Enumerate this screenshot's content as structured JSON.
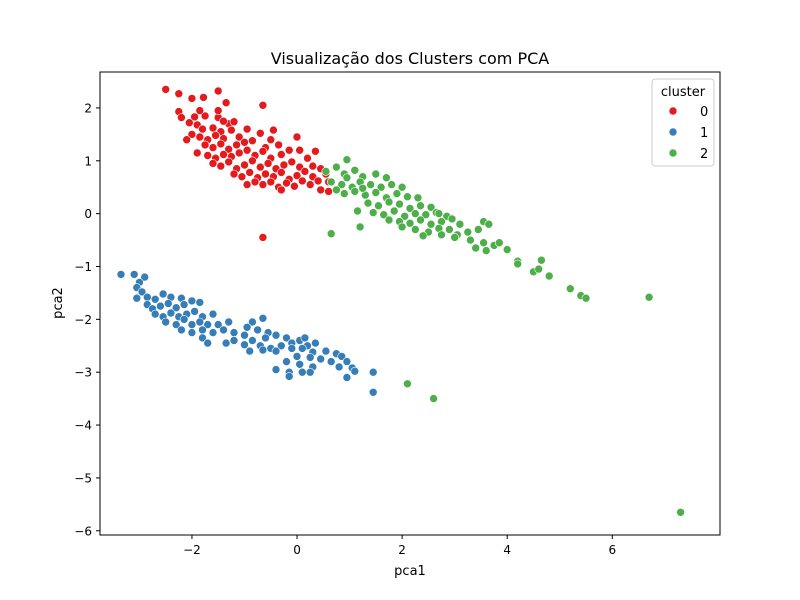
{
  "chart_data": {
    "type": "scatter",
    "title": "Visualização dos Clusters com PCA",
    "xlabel": "pca1",
    "ylabel": "pca2",
    "xlim": [
      -3.75,
      8.05
    ],
    "ylim": [
      -6.08,
      2.68
    ],
    "xticks": [
      -2,
      0,
      2,
      4,
      6
    ],
    "yticks": [
      -6,
      -5,
      -4,
      -3,
      -2,
      -1,
      0,
      1,
      2
    ],
    "grid": false,
    "legend": {
      "title": "cluster",
      "placement": "top-right"
    },
    "series": [
      {
        "name": "0",
        "color": "#e41a1c",
        "points": [
          [
            -2.5,
            2.35
          ],
          [
            -2.25,
            2.27
          ],
          [
            -2.0,
            2.18
          ],
          [
            -1.78,
            2.2
          ],
          [
            -1.5,
            2.32
          ],
          [
            -1.35,
            2.1
          ],
          [
            -0.65,
            2.05
          ],
          [
            -2.25,
            1.93
          ],
          [
            -2.2,
            1.82
          ],
          [
            -1.95,
            1.83
          ],
          [
            -1.75,
            1.85
          ],
          [
            -1.5,
            1.82
          ],
          [
            -1.3,
            1.7
          ],
          [
            -1.2,
            1.74
          ],
          [
            -2.05,
            1.72
          ],
          [
            -1.9,
            1.68
          ],
          [
            -1.8,
            1.6
          ],
          [
            -1.6,
            1.62
          ],
          [
            -1.45,
            1.55
          ],
          [
            -1.25,
            1.58
          ],
          [
            -0.95,
            1.6
          ],
          [
            -0.45,
            1.58
          ],
          [
            -2.0,
            1.5
          ],
          [
            -1.85,
            1.45
          ],
          [
            -1.7,
            1.4
          ],
          [
            -1.55,
            1.48
          ],
          [
            -1.4,
            1.42
          ],
          [
            -1.1,
            1.45
          ],
          [
            -0.7,
            1.52
          ],
          [
            0.0,
            1.45
          ],
          [
            -1.75,
            1.3
          ],
          [
            -1.6,
            1.25
          ],
          [
            -1.45,
            1.32
          ],
          [
            -1.3,
            1.22
          ],
          [
            -1.15,
            1.3
          ],
          [
            -1.0,
            1.35
          ],
          [
            -0.85,
            1.38
          ],
          [
            -0.6,
            1.25
          ],
          [
            -0.35,
            1.3
          ],
          [
            -1.9,
            1.15
          ],
          [
            -1.7,
            1.1
          ],
          [
            -1.55,
            1.05
          ],
          [
            -1.4,
            1.12
          ],
          [
            -1.25,
            1.08
          ],
          [
            -1.1,
            1.15
          ],
          [
            -0.95,
            1.2
          ],
          [
            -0.8,
            1.1
          ],
          [
            -0.65,
            1.18
          ],
          [
            -0.5,
            1.05
          ],
          [
            -0.3,
            1.12
          ],
          [
            -0.15,
            1.2
          ],
          [
            0.05,
            1.2
          ],
          [
            -1.6,
            0.95
          ],
          [
            -1.45,
            0.9
          ],
          [
            -1.3,
            0.98
          ],
          [
            -1.15,
            0.85
          ],
          [
            -1.0,
            0.92
          ],
          [
            -0.85,
            1.0
          ],
          [
            -0.7,
            0.88
          ],
          [
            -0.55,
            0.95
          ],
          [
            -0.4,
            0.85
          ],
          [
            -0.25,
            0.92
          ],
          [
            -0.1,
            0.98
          ],
          [
            0.05,
            0.88
          ],
          [
            0.2,
            1.05
          ],
          [
            0.35,
            1.18
          ],
          [
            -1.2,
            0.75
          ],
          [
            -1.05,
            0.7
          ],
          [
            -0.9,
            0.78
          ],
          [
            -0.75,
            0.68
          ],
          [
            -0.6,
            0.75
          ],
          [
            -0.45,
            0.7
          ],
          [
            -0.3,
            0.78
          ],
          [
            -0.15,
            0.65
          ],
          [
            0.0,
            0.72
          ],
          [
            0.15,
            0.8
          ],
          [
            0.3,
            0.7
          ],
          [
            0.45,
            0.85
          ],
          [
            0.55,
            0.75
          ],
          [
            -0.95,
            0.55
          ],
          [
            -0.8,
            0.6
          ],
          [
            -0.65,
            0.55
          ],
          [
            -0.5,
            0.6
          ],
          [
            -0.35,
            0.5
          ],
          [
            -0.2,
            0.58
          ],
          [
            -0.05,
            0.52
          ],
          [
            0.1,
            0.62
          ],
          [
            0.25,
            0.55
          ],
          [
            0.4,
            0.62
          ],
          [
            0.6,
            0.6
          ],
          [
            -0.3,
            0.45
          ],
          [
            0.45,
            0.45
          ],
          [
            0.6,
            0.42
          ],
          [
            -0.65,
            -0.45
          ],
          [
            -1.5,
            1.95
          ],
          [
            -1.85,
            1.95
          ],
          [
            -1.4,
            1.75
          ],
          [
            0.3,
            0.9
          ],
          [
            -0.5,
            1.4
          ],
          [
            -2.1,
            1.4
          ]
        ]
      },
      {
        "name": "1",
        "color": "#377eb8",
        "points": [
          [
            -3.35,
            -1.15
          ],
          [
            -3.1,
            -1.15
          ],
          [
            -2.9,
            -1.2
          ],
          [
            -3.0,
            -1.3
          ],
          [
            -3.05,
            -1.4
          ],
          [
            -2.95,
            -1.48
          ],
          [
            -3.05,
            -1.6
          ],
          [
            -2.85,
            -1.58
          ],
          [
            -2.7,
            -1.62
          ],
          [
            -2.55,
            -1.52
          ],
          [
            -2.4,
            -1.58
          ],
          [
            -2.2,
            -1.6
          ],
          [
            -2.85,
            -1.72
          ],
          [
            -2.75,
            -1.8
          ],
          [
            -2.6,
            -1.75
          ],
          [
            -2.45,
            -1.7
          ],
          [
            -2.3,
            -1.78
          ],
          [
            -2.15,
            -1.72
          ],
          [
            -2.0,
            -1.65
          ],
          [
            -1.85,
            -1.68
          ],
          [
            -2.7,
            -1.9
          ],
          [
            -2.55,
            -1.95
          ],
          [
            -2.4,
            -1.88
          ],
          [
            -2.25,
            -1.95
          ],
          [
            -2.1,
            -1.9
          ],
          [
            -1.95,
            -1.85
          ],
          [
            -1.8,
            -1.95
          ],
          [
            -1.6,
            -1.9
          ],
          [
            -2.5,
            -2.05
          ],
          [
            -2.3,
            -2.1
          ],
          [
            -2.15,
            -2.0
          ],
          [
            -2.0,
            -2.1
          ],
          [
            -1.85,
            -2.05
          ],
          [
            -1.7,
            -2.1
          ],
          [
            -1.5,
            -2.1
          ],
          [
            -1.3,
            -2.05
          ],
          [
            -2.2,
            -2.2
          ],
          [
            -2.0,
            -2.25
          ],
          [
            -1.8,
            -2.2
          ],
          [
            -1.6,
            -2.25
          ],
          [
            -1.4,
            -2.2
          ],
          [
            -1.2,
            -2.25
          ],
          [
            -0.85,
            -2.05
          ],
          [
            -0.65,
            -1.98
          ],
          [
            -0.95,
            -2.15
          ],
          [
            -0.75,
            -2.2
          ],
          [
            -0.55,
            -2.25
          ],
          [
            -1.0,
            -2.3
          ],
          [
            -1.8,
            -2.35
          ],
          [
            -1.7,
            -2.45
          ],
          [
            -1.35,
            -2.45
          ],
          [
            -1.2,
            -2.4
          ],
          [
            -1.0,
            -2.48
          ],
          [
            -0.85,
            -2.4
          ],
          [
            -0.6,
            -2.35
          ],
          [
            -0.4,
            -2.3
          ],
          [
            -0.2,
            -2.35
          ],
          [
            -0.7,
            -2.5
          ],
          [
            -0.5,
            -2.55
          ],
          [
            -0.3,
            -2.5
          ],
          [
            -0.1,
            -2.45
          ],
          [
            0.05,
            -2.4
          ],
          [
            0.2,
            -2.5
          ],
          [
            0.35,
            -2.45
          ],
          [
            -0.9,
            -2.6
          ],
          [
            -0.65,
            -2.58
          ],
          [
            -0.4,
            -2.6
          ],
          [
            0.1,
            -2.55
          ],
          [
            0.3,
            -2.62
          ],
          [
            0.55,
            -2.6
          ],
          [
            0.75,
            -2.65
          ],
          [
            0.0,
            -2.7
          ],
          [
            0.25,
            -2.72
          ],
          [
            0.45,
            -2.75
          ],
          [
            0.65,
            -2.8
          ],
          [
            0.85,
            -2.7
          ],
          [
            -0.2,
            -2.8
          ],
          [
            0.05,
            -2.85
          ],
          [
            0.3,
            -2.9
          ],
          [
            0.95,
            -2.8
          ],
          [
            -0.4,
            -2.95
          ],
          [
            -0.15,
            -3.0
          ],
          [
            0.1,
            -3.0
          ],
          [
            0.25,
            -3.0
          ],
          [
            0.8,
            -2.9
          ],
          [
            1.05,
            -2.92
          ],
          [
            1.1,
            -2.98
          ],
          [
            0.95,
            -3.1
          ],
          [
            -0.15,
            -3.08
          ],
          [
            1.45,
            -3.0
          ],
          [
            1.45,
            -3.38
          ],
          [
            -0.1,
            -2.55
          ],
          [
            0.15,
            -2.35
          ]
        ]
      },
      {
        "name": "2",
        "color": "#4daf4a",
        "points": [
          [
            0.95,
            1.02
          ],
          [
            0.75,
            0.88
          ],
          [
            0.55,
            0.8
          ],
          [
            0.9,
            0.75
          ],
          [
            1.1,
            0.82
          ],
          [
            1.25,
            0.7
          ],
          [
            1.5,
            0.75
          ],
          [
            1.7,
            0.68
          ],
          [
            0.65,
            0.6
          ],
          [
            0.85,
            0.55
          ],
          [
            1.05,
            0.5
          ],
          [
            1.2,
            0.6
          ],
          [
            1.4,
            0.55
          ],
          [
            1.6,
            0.5
          ],
          [
            1.8,
            0.55
          ],
          [
            2.0,
            0.5
          ],
          [
            0.75,
            0.45
          ],
          [
            0.9,
            0.38
          ],
          [
            1.1,
            0.42
          ],
          [
            1.3,
            0.35
          ],
          [
            1.5,
            0.4
          ],
          [
            1.7,
            0.3
          ],
          [
            1.9,
            0.38
          ],
          [
            2.1,
            0.32
          ],
          [
            2.3,
            0.3
          ],
          [
            1.35,
            0.2
          ],
          [
            1.55,
            0.15
          ],
          [
            1.75,
            0.22
          ],
          [
            1.95,
            0.18
          ],
          [
            2.15,
            0.1
          ],
          [
            2.35,
            0.15
          ],
          [
            2.55,
            0.12
          ],
          [
            1.15,
            0.05
          ],
          [
            1.45,
            0.02
          ],
          [
            1.65,
            -0.02
          ],
          [
            1.85,
            0.05
          ],
          [
            2.05,
            -0.05
          ],
          [
            2.25,
            0.0
          ],
          [
            2.45,
            -0.02
          ],
          [
            2.65,
            0.02
          ],
          [
            2.85,
            -0.05
          ],
          [
            1.75,
            -0.12
          ],
          [
            1.95,
            -0.15
          ],
          [
            2.15,
            -0.18
          ],
          [
            2.35,
            -0.12
          ],
          [
            2.55,
            -0.2
          ],
          [
            2.75,
            -0.15
          ],
          [
            2.95,
            -0.1
          ],
          [
            3.1,
            -0.2
          ],
          [
            2.0,
            -0.25
          ],
          [
            2.25,
            -0.3
          ],
          [
            2.5,
            -0.35
          ],
          [
            2.7,
            -0.28
          ],
          [
            2.9,
            -0.3
          ],
          [
            3.05,
            -0.4
          ],
          [
            3.25,
            -0.35
          ],
          [
            3.45,
            -0.3
          ],
          [
            3.55,
            -0.15
          ],
          [
            3.65,
            -0.2
          ],
          [
            2.4,
            -0.42
          ],
          [
            2.75,
            -0.4
          ],
          [
            3.0,
            -0.45
          ],
          [
            3.3,
            -0.5
          ],
          [
            3.55,
            -0.55
          ],
          [
            3.75,
            -0.6
          ],
          [
            3.4,
            -0.65
          ],
          [
            3.6,
            -0.7
          ],
          [
            3.85,
            -0.55
          ],
          [
            4.0,
            -0.68
          ],
          [
            4.2,
            -0.9
          ],
          [
            4.2,
            -0.95
          ],
          [
            4.5,
            -1.1
          ],
          [
            4.6,
            -1.05
          ],
          [
            4.65,
            -0.88
          ],
          [
            4.8,
            -1.18
          ],
          [
            5.2,
            -1.42
          ],
          [
            5.4,
            -1.55
          ],
          [
            5.5,
            -1.6
          ],
          [
            6.7,
            -1.58
          ],
          [
            1.2,
            -0.25
          ],
          [
            0.65,
            -0.38
          ],
          [
            2.1,
            -3.22
          ],
          [
            2.6,
            -3.5
          ],
          [
            7.3,
            -5.65
          ],
          [
            0.95,
            0.68
          ],
          [
            1.25,
            0.48
          ],
          [
            2.7,
            0.0
          ]
        ]
      }
    ]
  }
}
